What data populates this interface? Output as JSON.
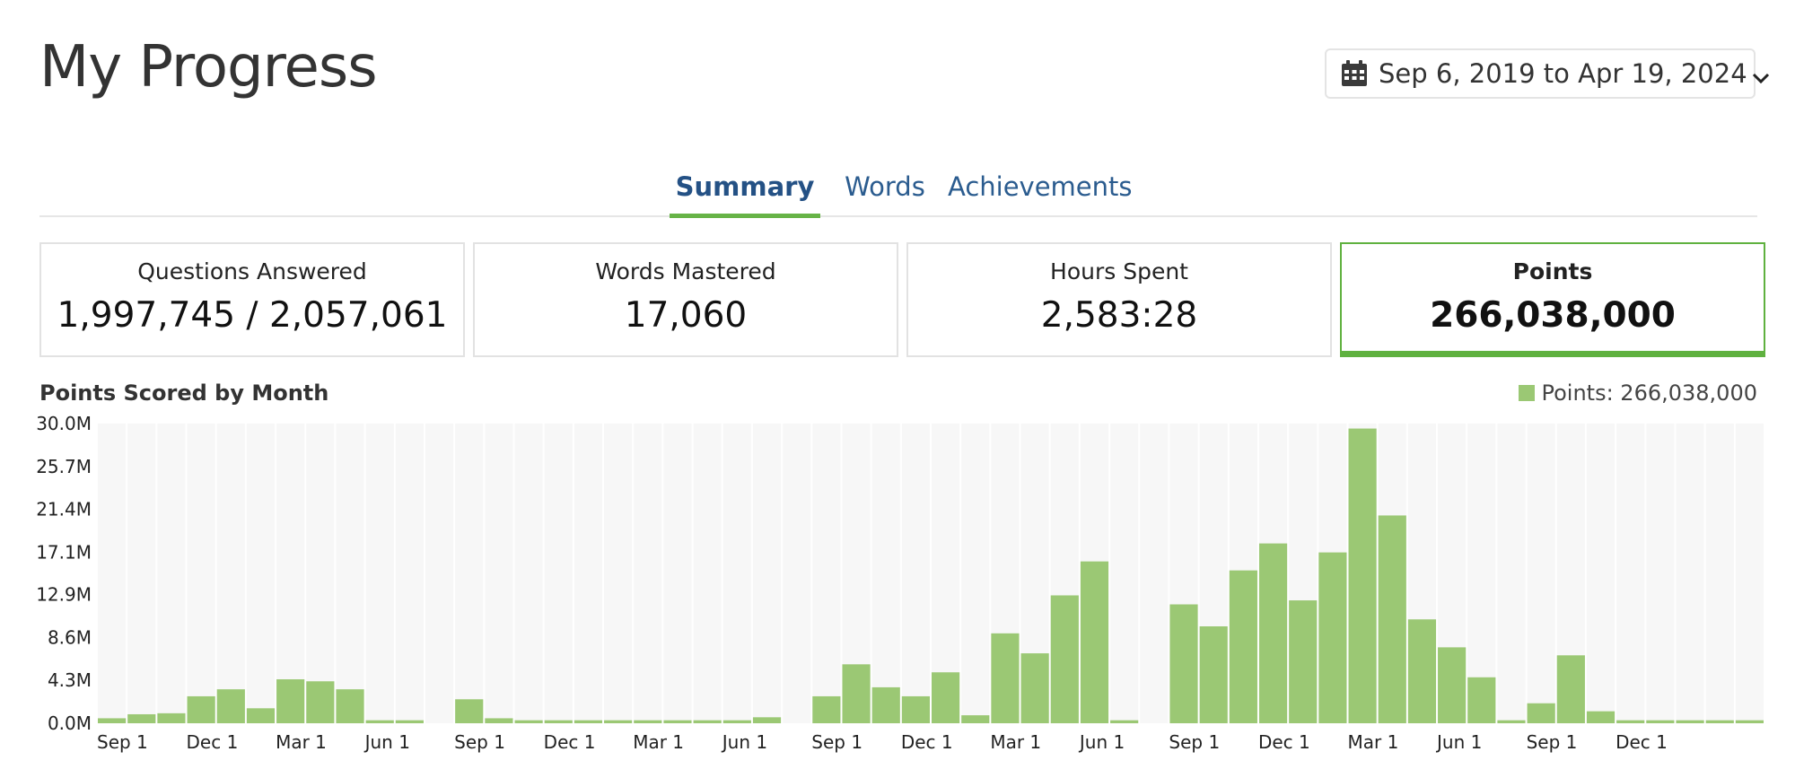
{
  "page": {
    "title": "My Progress",
    "date_range": "Sep 6, 2019 to Apr 19, 2024",
    "icons": {
      "calendar": "calendar-icon",
      "dropdown": "chevron-down-icon"
    }
  },
  "tabs": [
    {
      "label": "Summary",
      "active": true
    },
    {
      "label": "Words",
      "active": false
    },
    {
      "label": "Achievements",
      "active": false
    }
  ],
  "stats": [
    {
      "label": "Questions Answered",
      "value": "1,997,745 / 2,057,061"
    },
    {
      "label": "Words Mastered",
      "value": "17,060"
    },
    {
      "label": "Hours Spent",
      "value": "2,583:28"
    },
    {
      "label": "Points",
      "value": "266,038,000",
      "active": true
    }
  ],
  "chart": {
    "title": "Points Scored by Month",
    "legend": "Points: 266,038,000",
    "colors": {
      "bar": "#9bc874",
      "plot_bg": "#f7f7f7",
      "grid": "#ffffff"
    }
  },
  "chart_data": {
    "type": "bar",
    "title": "Points Scored by Month",
    "xlabel": "",
    "ylabel": "",
    "ylim": [
      0,
      30.0
    ],
    "y_unit": "M",
    "y_ticks": [
      "0.0M",
      "4.3M",
      "8.6M",
      "12.9M",
      "17.1M",
      "21.4M",
      "25.7M",
      "30.0M"
    ],
    "legend_position": "top-right",
    "categories": [
      "2019-09",
      "2019-10",
      "2019-11",
      "2019-12",
      "2020-01",
      "2020-02",
      "2020-03",
      "2020-04",
      "2020-05",
      "2020-06",
      "2020-07",
      "2020-08",
      "2020-09",
      "2020-10",
      "2020-11",
      "2020-12",
      "2021-01",
      "2021-02",
      "2021-03",
      "2021-04",
      "2021-05",
      "2021-06",
      "2021-07",
      "2021-08",
      "2021-09",
      "2021-10",
      "2021-11",
      "2021-12",
      "2022-01",
      "2022-02",
      "2022-03",
      "2022-04",
      "2022-05",
      "2022-06",
      "2022-07",
      "2022-08",
      "2022-09",
      "2022-10",
      "2022-11",
      "2022-12",
      "2023-01",
      "2023-02",
      "2023-03",
      "2023-04",
      "2023-05",
      "2023-06",
      "2023-07",
      "2023-08",
      "2023-09",
      "2023-10",
      "2023-11",
      "2023-12",
      "2024-01",
      "2024-02",
      "2024-03",
      "2024-04"
    ],
    "x_tick_labels": [
      {
        "category": "2019-09",
        "label": "Sep 1"
      },
      {
        "category": "2019-12",
        "label": "Dec 1"
      },
      {
        "category": "2020-03",
        "label": "Mar 1"
      },
      {
        "category": "2020-06",
        "label": "Jun 1"
      },
      {
        "category": "2020-09",
        "label": "Sep 1"
      },
      {
        "category": "2020-12",
        "label": "Dec 1"
      },
      {
        "category": "2021-03",
        "label": "Mar 1"
      },
      {
        "category": "2021-06",
        "label": "Jun 1"
      },
      {
        "category": "2021-09",
        "label": "Sep 1"
      },
      {
        "category": "2021-12",
        "label": "Dec 1"
      },
      {
        "category": "2022-03",
        "label": "Mar 1"
      },
      {
        "category": "2022-06",
        "label": "Jun 1"
      },
      {
        "category": "2022-09",
        "label": "Sep 1"
      },
      {
        "category": "2022-12",
        "label": "Dec 1"
      },
      {
        "category": "2023-03",
        "label": "Mar 1"
      },
      {
        "category": "2023-06",
        "label": "Jun 1"
      },
      {
        "category": "2023-09",
        "label": "Sep 1"
      },
      {
        "category": "2023-12",
        "label": "Dec 1"
      }
    ],
    "series": [
      {
        "name": "Points",
        "values": [
          0.5,
          0.9,
          1.0,
          2.7,
          3.4,
          1.5,
          4.4,
          4.2,
          3.4,
          0.3,
          0.3,
          0,
          2.4,
          0.5,
          0.3,
          0.3,
          0.3,
          0.3,
          0.3,
          0.3,
          0.3,
          0.3,
          0.6,
          0,
          2.7,
          5.9,
          3.6,
          2.7,
          5.1,
          0.8,
          9.0,
          7.0,
          12.8,
          16.2,
          0.3,
          0,
          11.9,
          9.7,
          15.3,
          18.0,
          12.3,
          17.1,
          29.5,
          20.8,
          10.4,
          7.6,
          4.6,
          0.3,
          2.0,
          6.8,
          1.2,
          0.3,
          0.3,
          0.3,
          0.3,
          0.3
        ]
      }
    ]
  }
}
